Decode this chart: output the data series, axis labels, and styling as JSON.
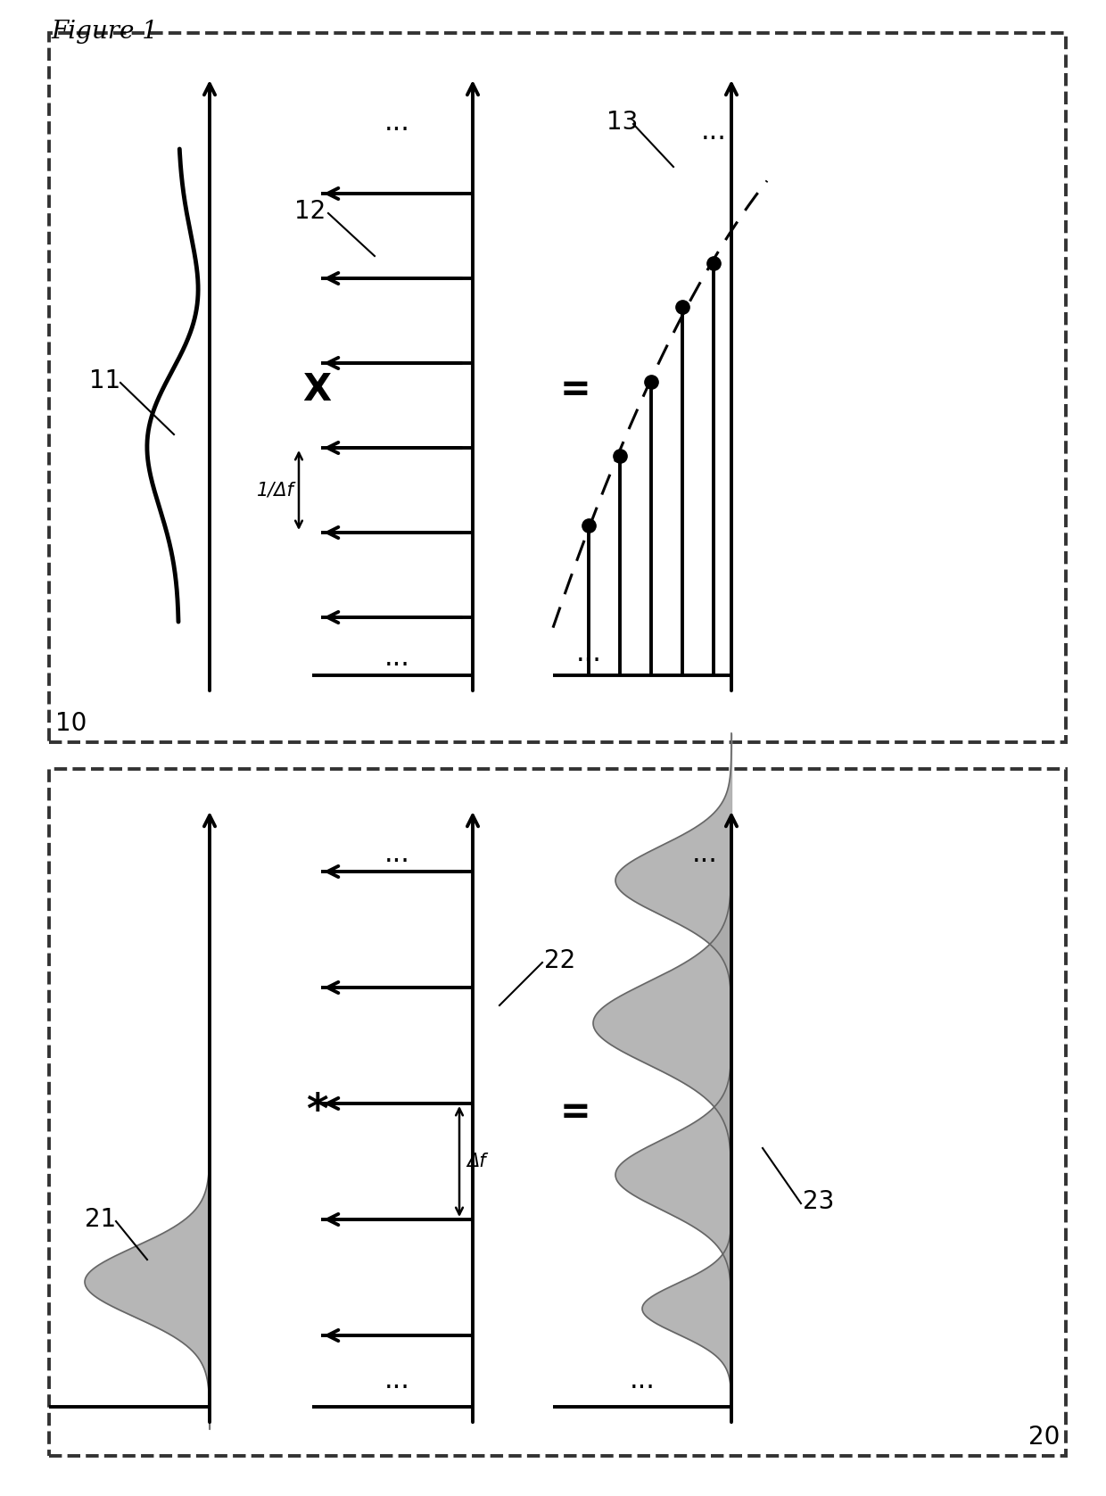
{
  "figure_title": "Figure 1",
  "background_color": "#ffffff",
  "dashed_box_color": "#444444",
  "black": "#000000",
  "gray": "#aaaaaa",
  "label_10": "10",
  "label_11": "11",
  "label_12": "12",
  "label_13": "13",
  "label_20": "20",
  "label_21": "21",
  "label_22": "22",
  "label_23": "23",
  "delta_f": "Δf",
  "inv_delta_f": "1/Δf",
  "op_x": "X",
  "op_eq": "=",
  "op_conv": "*"
}
